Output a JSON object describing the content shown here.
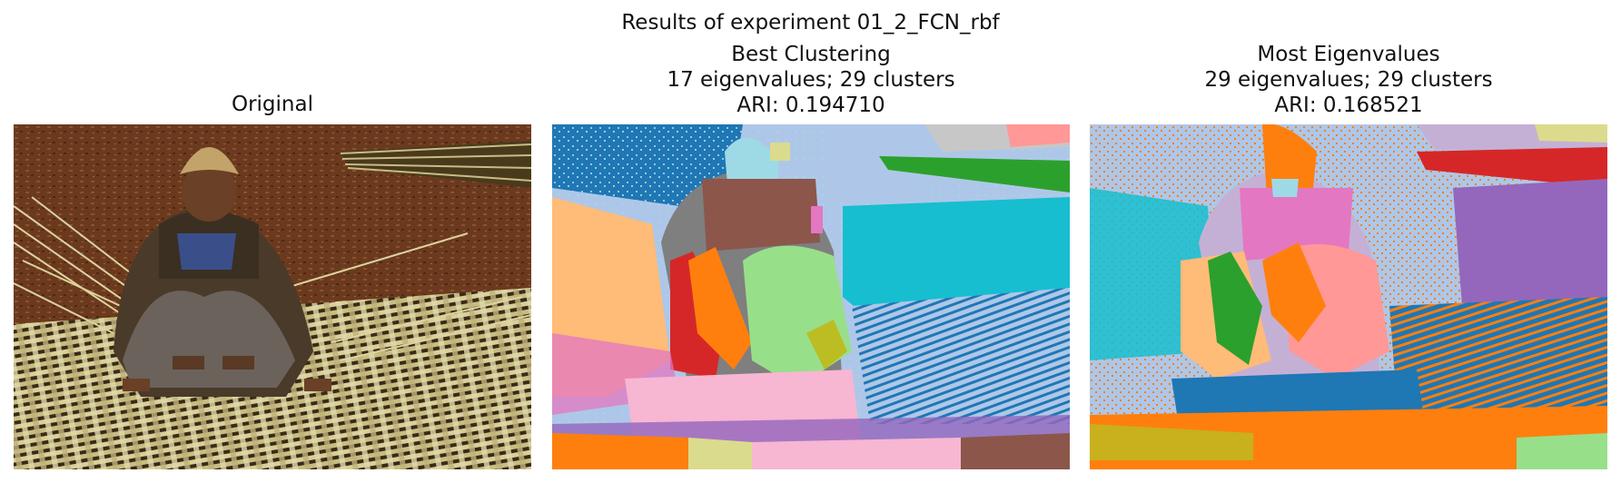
{
  "figure": {
    "suptitle": "Results of experiment 01_2_FCN_rbf"
  },
  "panels": [
    {
      "title_lines": [
        "Original"
      ]
    },
    {
      "title_lines": [
        "Best Clustering",
        "17 eigenvalues; 29 clusters",
        "ARI: 0.194710"
      ]
    },
    {
      "title_lines": [
        "Most Eigenvalues",
        "29 eigenvalues; 29 clusters",
        "ARI: 0.168521"
      ]
    }
  ],
  "colors": {
    "ground": "#6b3a1e",
    "straw": "#d8cf9a",
    "skin": "#6a4026",
    "tab20_blue": "#1f77b4",
    "tab20_lightblue": "#aec7e8",
    "tab20_orange": "#ff7f0e",
    "tab20_lightorange": "#ffbb78",
    "tab20_green": "#2ca02c",
    "tab20_lightgreen": "#98df8a",
    "tab20_red": "#d62728",
    "tab20_pink": "#ff9896",
    "tab20_purple": "#9467bd",
    "tab20_lavender": "#c5b0d5",
    "tab20_brown": "#8c564b",
    "tab20_magenta": "#e377c2",
    "tab20_grey": "#7f7f7f",
    "tab20_olive": "#bcbd22",
    "tab20_cyan": "#17becf",
    "tab20_lightcyan": "#9edae5"
  }
}
